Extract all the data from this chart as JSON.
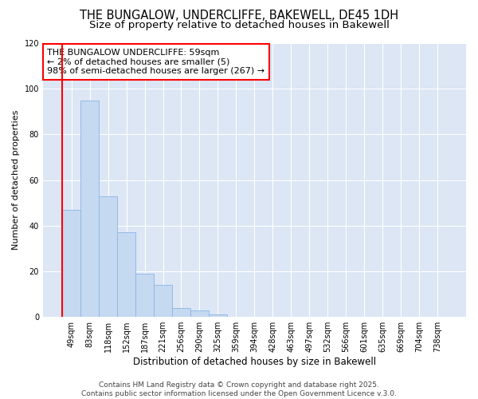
{
  "title_line1": "THE BUNGALOW, UNDERCLIFFE, BAKEWELL, DE45 1DH",
  "title_line2": "Size of property relative to detached houses in Bakewell",
  "xlabel": "Distribution of detached houses by size in Bakewell",
  "ylabel": "Number of detached properties",
  "bar_values": [
    47,
    95,
    53,
    37,
    19,
    14,
    4,
    3,
    1,
    0,
    0,
    0,
    0,
    0,
    0,
    0,
    0,
    0,
    0,
    0,
    0
  ],
  "x_labels": [
    "49sqm",
    "83sqm",
    "118sqm",
    "152sqm",
    "187sqm",
    "221sqm",
    "256sqm",
    "290sqm",
    "325sqm",
    "359sqm",
    "394sqm",
    "428sqm",
    "463sqm",
    "497sqm",
    "532sqm",
    "566sqm",
    "601sqm",
    "635sqm",
    "669sqm",
    "704sqm",
    "738sqm"
  ],
  "bar_color": "#c5d9f1",
  "bar_edge_color": "#8db4e2",
  "highlight_index": 0,
  "highlight_line_color": "#ff0000",
  "annotation_text": "THE BUNGALOW UNDERCLIFFE: 59sqm\n← 2% of detached houses are smaller (5)\n98% of semi-detached houses are larger (267) →",
  "annotation_box_color": "#ff0000",
  "ylim": [
    0,
    120
  ],
  "yticks": [
    0,
    20,
    40,
    60,
    80,
    100,
    120
  ],
  "background_color": "#dce6f5",
  "plot_bg_color": "#dce6f5",
  "grid_color": "#ffffff",
  "footer_text": "Contains HM Land Registry data © Crown copyright and database right 2025.\nContains public sector information licensed under the Open Government Licence v.3.0.",
  "title_fontsize": 10.5,
  "subtitle_fontsize": 9.5,
  "annotation_fontsize": 8,
  "ylabel_fontsize": 8,
  "xlabel_fontsize": 8.5,
  "footer_fontsize": 6.5,
  "tick_fontsize": 7
}
